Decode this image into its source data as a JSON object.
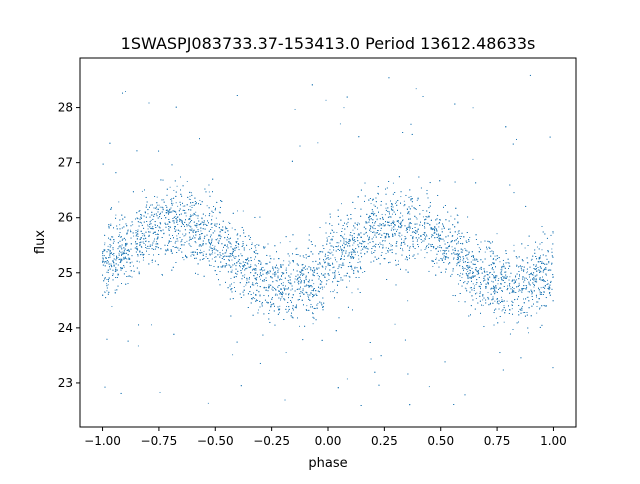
{
  "chart_data": {
    "type": "scatter",
    "title": "1SWASPJ083733.37-153413.0 Period 13612.48633s",
    "xlabel": "phase",
    "ylabel": "flux",
    "xlim": [
      -1.1,
      1.1
    ],
    "ylim": [
      22.2,
      28.9
    ],
    "x_ticks": [
      -1.0,
      -0.75,
      -0.5,
      -0.25,
      0.0,
      0.25,
      0.5,
      0.75,
      1.0
    ],
    "x_tick_labels": [
      "−1.00",
      "−0.75",
      "−0.50",
      "−0.25",
      "0.00",
      "0.25",
      "0.50",
      "0.75",
      "1.00"
    ],
    "y_ticks": [
      23,
      24,
      25,
      26,
      27,
      28
    ],
    "y_tick_labels": [
      "23",
      "24",
      "25",
      "26",
      "27",
      "28"
    ],
    "grid": false,
    "legend": "none",
    "marker_color": "#1f77b4",
    "x_range": [
      -1.0,
      1.0
    ],
    "trend": {
      "description": "sinusoidal light curve with period 1.0 in phase",
      "mean_flux": 25.33,
      "amplitude": 0.57,
      "peak_phases": [
        -0.68,
        0.32
      ],
      "trough_phases": [
        -0.18,
        0.82
      ],
      "scatter_sigma": 0.33,
      "outlier_flux_range": [
        22.5,
        28.6
      ]
    }
  }
}
